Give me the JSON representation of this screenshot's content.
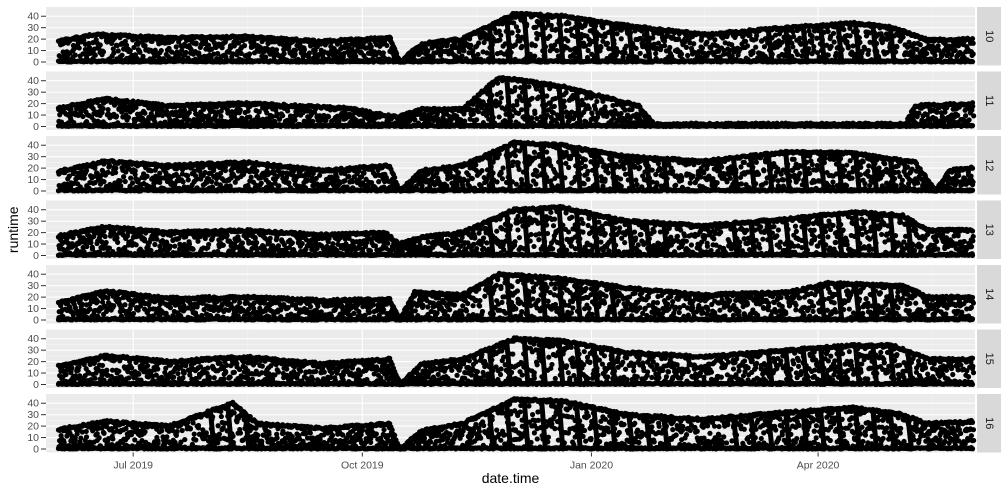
{
  "chart_data": {
    "type": "scatter",
    "xlabel": "date.time",
    "ylabel": "runtime",
    "x_range": [
      "2019-05-27",
      "2020-06-03"
    ],
    "ylim": [
      0,
      45
    ],
    "y_ticks": [
      0,
      10,
      20,
      30,
      40
    ],
    "x_ticks": [
      {
        "date": "2019-07-01",
        "label": "Jul 2019"
      },
      {
        "date": "2019-10-01",
        "label": "Oct 2019"
      },
      {
        "date": "2020-01-01",
        "label": "Jan 2020"
      },
      {
        "date": "2020-04-01",
        "label": "Apr 2020"
      }
    ],
    "grid": true,
    "panel_background": "#ebebeb",
    "strip_background": "#d9d9d9",
    "point_color": "#000000",
    "facet_var_values": [
      "10",
      "11",
      "12",
      "13",
      "14",
      "15",
      "16"
    ],
    "panels": [
      {
        "facet": "10",
        "profile": [
          {
            "date": "2019-06-01",
            "runtime": 18
          },
          {
            "date": "2019-06-15",
            "runtime": 24
          },
          {
            "date": "2019-07-15",
            "runtime": 21
          },
          {
            "date": "2019-08-15",
            "runtime": 22
          },
          {
            "date": "2019-09-15",
            "runtime": 18
          },
          {
            "date": "2019-10-12",
            "runtime": 21
          },
          {
            "date": "2019-10-16",
            "runtime": 0
          },
          {
            "date": "2019-10-25",
            "runtime": 16
          },
          {
            "date": "2019-11-10",
            "runtime": 20
          },
          {
            "date": "2019-12-01",
            "runtime": 42
          },
          {
            "date": "2019-12-20",
            "runtime": 40
          },
          {
            "date": "2020-01-10",
            "runtime": 33
          },
          {
            "date": "2020-02-15",
            "runtime": 24
          },
          {
            "date": "2020-03-20",
            "runtime": 30
          },
          {
            "date": "2020-04-15",
            "runtime": 34
          },
          {
            "date": "2020-05-01",
            "runtime": 30
          },
          {
            "date": "2020-05-15",
            "runtime": 19
          },
          {
            "date": "2020-06-02",
            "runtime": 20
          }
        ]
      },
      {
        "facet": "11",
        "profile": [
          {
            "date": "2019-06-01",
            "runtime": 16
          },
          {
            "date": "2019-06-20",
            "runtime": 24
          },
          {
            "date": "2019-07-15",
            "runtime": 18
          },
          {
            "date": "2019-08-15",
            "runtime": 20
          },
          {
            "date": "2019-09-25",
            "runtime": 16
          },
          {
            "date": "2019-10-15",
            "runtime": 8
          },
          {
            "date": "2019-10-25",
            "runtime": 15
          },
          {
            "date": "2019-11-10",
            "runtime": 15
          },
          {
            "date": "2019-11-25",
            "runtime": 43
          },
          {
            "date": "2019-12-20",
            "runtime": 35
          },
          {
            "date": "2020-01-20",
            "runtime": 18
          },
          {
            "date": "2020-01-26",
            "runtime": 2
          },
          {
            "date": "2020-05-06",
            "runtime": 2
          },
          {
            "date": "2020-05-10",
            "runtime": 18
          },
          {
            "date": "2020-06-02",
            "runtime": 20
          }
        ]
      },
      {
        "facet": "12",
        "profile": [
          {
            "date": "2019-06-01",
            "runtime": 17
          },
          {
            "date": "2019-06-20",
            "runtime": 26
          },
          {
            "date": "2019-07-15",
            "runtime": 22
          },
          {
            "date": "2019-08-15",
            "runtime": 25
          },
          {
            "date": "2019-09-15",
            "runtime": 18
          },
          {
            "date": "2019-10-12",
            "runtime": 22
          },
          {
            "date": "2019-10-16",
            "runtime": 0
          },
          {
            "date": "2019-10-25",
            "runtime": 18
          },
          {
            "date": "2019-11-10",
            "runtime": 22
          },
          {
            "date": "2019-12-01",
            "runtime": 42
          },
          {
            "date": "2019-12-20",
            "runtime": 40
          },
          {
            "date": "2020-01-15",
            "runtime": 30
          },
          {
            "date": "2020-02-15",
            "runtime": 26
          },
          {
            "date": "2020-03-20",
            "runtime": 34
          },
          {
            "date": "2020-04-15",
            "runtime": 33
          },
          {
            "date": "2020-05-10",
            "runtime": 25
          },
          {
            "date": "2020-05-18",
            "runtime": 0
          },
          {
            "date": "2020-05-24",
            "runtime": 18
          },
          {
            "date": "2020-06-02",
            "runtime": 20
          }
        ]
      },
      {
        "facet": "13",
        "profile": [
          {
            "date": "2019-06-01",
            "runtime": 17
          },
          {
            "date": "2019-06-20",
            "runtime": 25
          },
          {
            "date": "2019-07-15",
            "runtime": 20
          },
          {
            "date": "2019-08-15",
            "runtime": 22
          },
          {
            "date": "2019-09-15",
            "runtime": 18
          },
          {
            "date": "2019-10-10",
            "runtime": 20
          },
          {
            "date": "2019-10-16",
            "runtime": 10
          },
          {
            "date": "2019-10-25",
            "runtime": 16
          },
          {
            "date": "2019-11-10",
            "runtime": 20
          },
          {
            "date": "2019-12-01",
            "runtime": 40
          },
          {
            "date": "2019-12-20",
            "runtime": 42
          },
          {
            "date": "2020-01-15",
            "runtime": 30
          },
          {
            "date": "2020-02-15",
            "runtime": 26
          },
          {
            "date": "2020-03-20",
            "runtime": 32
          },
          {
            "date": "2020-04-15",
            "runtime": 38
          },
          {
            "date": "2020-05-05",
            "runtime": 35
          },
          {
            "date": "2020-05-15",
            "runtime": 22
          },
          {
            "date": "2020-06-02",
            "runtime": 22
          }
        ]
      },
      {
        "facet": "14",
        "profile": [
          {
            "date": "2019-06-01",
            "runtime": 15
          },
          {
            "date": "2019-06-20",
            "runtime": 25
          },
          {
            "date": "2019-07-15",
            "runtime": 19
          },
          {
            "date": "2019-08-15",
            "runtime": 20
          },
          {
            "date": "2019-09-15",
            "runtime": 17
          },
          {
            "date": "2019-10-12",
            "runtime": 18
          },
          {
            "date": "2019-10-16",
            "runtime": 0
          },
          {
            "date": "2019-10-22",
            "runtime": 24
          },
          {
            "date": "2019-11-10",
            "runtime": 22
          },
          {
            "date": "2019-11-25",
            "runtime": 40
          },
          {
            "date": "2019-12-20",
            "runtime": 36
          },
          {
            "date": "2020-01-15",
            "runtime": 28
          },
          {
            "date": "2020-02-15",
            "runtime": 22
          },
          {
            "date": "2020-03-20",
            "runtime": 24
          },
          {
            "date": "2020-04-05",
            "runtime": 32
          },
          {
            "date": "2020-05-05",
            "runtime": 30
          },
          {
            "date": "2020-05-15",
            "runtime": 20
          },
          {
            "date": "2020-06-02",
            "runtime": 20
          }
        ]
      },
      {
        "facet": "15",
        "profile": [
          {
            "date": "2019-06-01",
            "runtime": 16
          },
          {
            "date": "2019-06-20",
            "runtime": 25
          },
          {
            "date": "2019-07-15",
            "runtime": 20
          },
          {
            "date": "2019-08-15",
            "runtime": 24
          },
          {
            "date": "2019-09-15",
            "runtime": 18
          },
          {
            "date": "2019-10-12",
            "runtime": 22
          },
          {
            "date": "2019-10-16",
            "runtime": 0
          },
          {
            "date": "2019-10-25",
            "runtime": 18
          },
          {
            "date": "2019-11-10",
            "runtime": 22
          },
          {
            "date": "2019-12-01",
            "runtime": 40
          },
          {
            "date": "2019-12-20",
            "runtime": 38
          },
          {
            "date": "2020-01-15",
            "runtime": 28
          },
          {
            "date": "2020-02-15",
            "runtime": 24
          },
          {
            "date": "2020-03-20",
            "runtime": 30
          },
          {
            "date": "2020-04-15",
            "runtime": 34
          },
          {
            "date": "2020-05-01",
            "runtime": 34
          },
          {
            "date": "2020-05-15",
            "runtime": 22
          },
          {
            "date": "2020-06-02",
            "runtime": 22
          }
        ]
      },
      {
        "facet": "16",
        "profile": [
          {
            "date": "2019-06-01",
            "runtime": 17
          },
          {
            "date": "2019-06-20",
            "runtime": 24
          },
          {
            "date": "2019-07-15",
            "runtime": 20
          },
          {
            "date": "2019-08-10",
            "runtime": 40
          },
          {
            "date": "2019-08-20",
            "runtime": 22
          },
          {
            "date": "2019-09-15",
            "runtime": 18
          },
          {
            "date": "2019-10-12",
            "runtime": 22
          },
          {
            "date": "2019-10-16",
            "runtime": 0
          },
          {
            "date": "2019-10-25",
            "runtime": 16
          },
          {
            "date": "2019-11-10",
            "runtime": 22
          },
          {
            "date": "2019-12-01",
            "runtime": 43
          },
          {
            "date": "2019-12-20",
            "runtime": 42
          },
          {
            "date": "2020-01-15",
            "runtime": 30
          },
          {
            "date": "2020-02-15",
            "runtime": 26
          },
          {
            "date": "2020-03-20",
            "runtime": 32
          },
          {
            "date": "2020-04-15",
            "runtime": 36
          },
          {
            "date": "2020-05-05",
            "runtime": 30
          },
          {
            "date": "2020-05-15",
            "runtime": 22
          },
          {
            "date": "2020-06-02",
            "runtime": 24
          }
        ]
      }
    ]
  }
}
